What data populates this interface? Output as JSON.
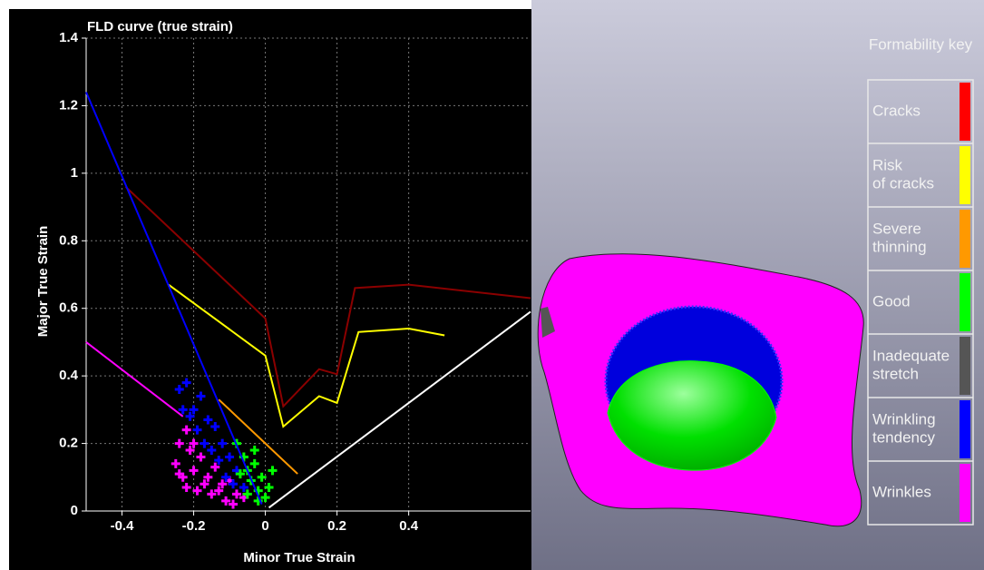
{
  "chart_data": {
    "type": "line",
    "title": "FLD curve (true strain)",
    "x_label": "Minor True Strain",
    "y_label": "Major True Strain",
    "xlim": [
      -0.5,
      0.74
    ],
    "ylim": [
      0,
      1.4
    ],
    "xticks": [
      -0.4,
      -0.2,
      0,
      0.2,
      0.4
    ],
    "yticks": [
      0,
      0.2,
      0.4,
      0.6,
      0.8,
      1,
      1.2,
      1.4
    ],
    "grid": true,
    "series": [
      {
        "type": "line",
        "color": "#8b0000",
        "x": [
          -0.39,
          0,
          0.05,
          0.15,
          0.2,
          0.25,
          0.4,
          0.74
        ],
        "values": [
          0.96,
          0.57,
          0.31,
          0.42,
          0.405,
          0.66,
          0.67,
          0.63
        ]
      },
      {
        "type": "line",
        "color": "#ffff00",
        "x": [
          -0.27,
          0,
          0.05,
          0.15,
          0.2,
          0.26,
          0.4,
          0.5
        ],
        "values": [
          0.67,
          0.46,
          0.25,
          0.34,
          0.32,
          0.53,
          0.54,
          0.52
        ]
      },
      {
        "type": "line",
        "color": "#ff9900",
        "x": [
          -0.13,
          0.09
        ],
        "values": [
          0.33,
          0.11
        ]
      },
      {
        "type": "line",
        "color": "#ffffff",
        "x": [
          0.01,
          0.74
        ],
        "values": [
          0.01,
          0.59
        ]
      },
      {
        "type": "line",
        "color": "#ff00ff",
        "x": [
          -0.5,
          -0.23
        ],
        "values": [
          0.5,
          0.28
        ]
      },
      {
        "type": "scatter",
        "color": "#ff00ff",
        "x": [
          -0.25,
          -0.24,
          -0.22,
          -0.2,
          -0.18,
          -0.16,
          -0.14,
          -0.12,
          -0.1,
          -0.08,
          -0.06,
          -0.23,
          -0.21,
          -0.19,
          -0.17,
          -0.15,
          -0.13,
          -0.11,
          -0.09,
          -0.2,
          -0.22,
          -0.24
        ],
        "values": [
          0.14,
          0.2,
          0.24,
          0.12,
          0.16,
          0.1,
          0.13,
          0.08,
          0.09,
          0.05,
          0.04,
          0.1,
          0.18,
          0.06,
          0.08,
          0.05,
          0.06,
          0.03,
          0.02,
          0.2,
          0.07,
          0.11
        ]
      },
      {
        "type": "scatter",
        "color": "#0000ff",
        "x": [
          -0.24,
          -0.22,
          -0.2,
          -0.18,
          -0.16,
          -0.14,
          -0.12,
          -0.1,
          -0.08,
          -0.06,
          -0.21,
          -0.19,
          -0.17,
          -0.15,
          -0.13,
          -0.11,
          -0.23,
          -0.09
        ],
        "values": [
          0.36,
          0.38,
          0.3,
          0.34,
          0.27,
          0.25,
          0.2,
          0.16,
          0.12,
          0.07,
          0.28,
          0.24,
          0.2,
          0.18,
          0.15,
          0.1,
          0.3,
          0.08
        ]
      },
      {
        "type": "scatter",
        "color": "#00ff00",
        "x": [
          -0.08,
          -0.06,
          -0.05,
          -0.04,
          -0.03,
          -0.02,
          -0.01,
          0,
          0.01,
          -0.07,
          -0.03,
          -0.05,
          -0.02,
          0.02
        ],
        "values": [
          0.2,
          0.16,
          0.12,
          0.09,
          0.14,
          0.06,
          0.1,
          0.04,
          0.07,
          0.11,
          0.18,
          0.05,
          0.03,
          0.12
        ]
      },
      {
        "type": "line",
        "color": "#0000ff",
        "x": [
          -0.5,
          -0.01
        ],
        "values": [
          1.24,
          0.02
        ]
      }
    ]
  },
  "formability_key": {
    "title": "Formability key",
    "items": [
      {
        "lines": [
          "Cracks"
        ],
        "color": "#ff0000"
      },
      {
        "lines": [
          "Risk",
          "of cracks"
        ],
        "color": "#ffff00"
      },
      {
        "lines": [
          "Severe",
          "thinning"
        ],
        "color": "#ff9900"
      },
      {
        "lines": [
          "Good"
        ],
        "color": "#00ff00"
      },
      {
        "lines": [
          "Inadequate",
          "stretch"
        ],
        "color": "#555555"
      },
      {
        "lines": [
          "Wrinkling",
          "tendency"
        ],
        "color": "#0000ff"
      },
      {
        "lines": [
          "Wrinkles"
        ],
        "color": "#ff00ff"
      }
    ]
  }
}
